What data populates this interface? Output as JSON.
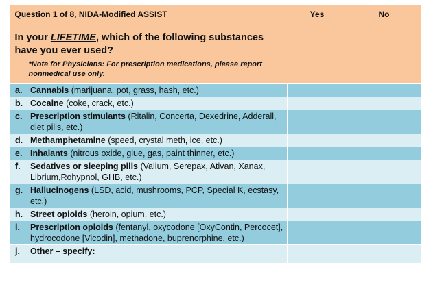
{
  "header": {
    "question_number": "Question 1 of 8, NIDA-Modified ASSIST",
    "col_yes": "Yes",
    "col_no": "No",
    "question_prefix": "In your ",
    "question_emph": "LIFETIME",
    "question_suffix": ", which of the following substances have you ever used?",
    "note": "*Note for Physicians: For prescription medications, please report nonmedical use only."
  },
  "rows": [
    {
      "letter": "a.",
      "name": "Cannabis",
      "desc": " (marijuana, pot, grass, hash, etc.)"
    },
    {
      "letter": "b.",
      "name": "Cocaine",
      "desc": " (coke, crack, etc.)"
    },
    {
      "letter": "c.",
      "name": "Prescription stimulants",
      "desc": " (Ritalin, Concerta, Dexedrine, Adderall, diet pills, etc.)"
    },
    {
      "letter": "d.",
      "name": "Methamphetamine",
      "desc": " (speed, crystal meth, ice, etc.)"
    },
    {
      "letter": "e.",
      "name": "Inhalants",
      "desc": " (nitrous oxide, glue, gas, paint thinner, etc.)"
    },
    {
      "letter": "f.",
      "name": "Sedatives or sleeping pills",
      "desc": " (Valium, Serepax, Ativan, Xanax, Librium,Rohypnol, GHB, etc.)"
    },
    {
      "letter": "g.",
      "name": "Hallucinogens",
      "desc": " (LSD, acid, mushrooms, PCP, Special K, ecstasy, etc.)"
    },
    {
      "letter": "h.",
      "name": "Street opioids",
      "desc": " (heroin, opium, etc.)"
    },
    {
      "letter": "i.",
      "name": "Prescription opioids",
      "desc": " (fentanyl, oxycodone [OxyContin, Percocet], hydrocodone [Vicodin], methadone, buprenorphine, etc.)"
    },
    {
      "letter": "j.",
      "name": "Other – specify:",
      "desc": ""
    }
  ],
  "colors": {
    "header": "#f9c79b",
    "row_dark": "#93cddd",
    "row_light": "#daeef3"
  }
}
